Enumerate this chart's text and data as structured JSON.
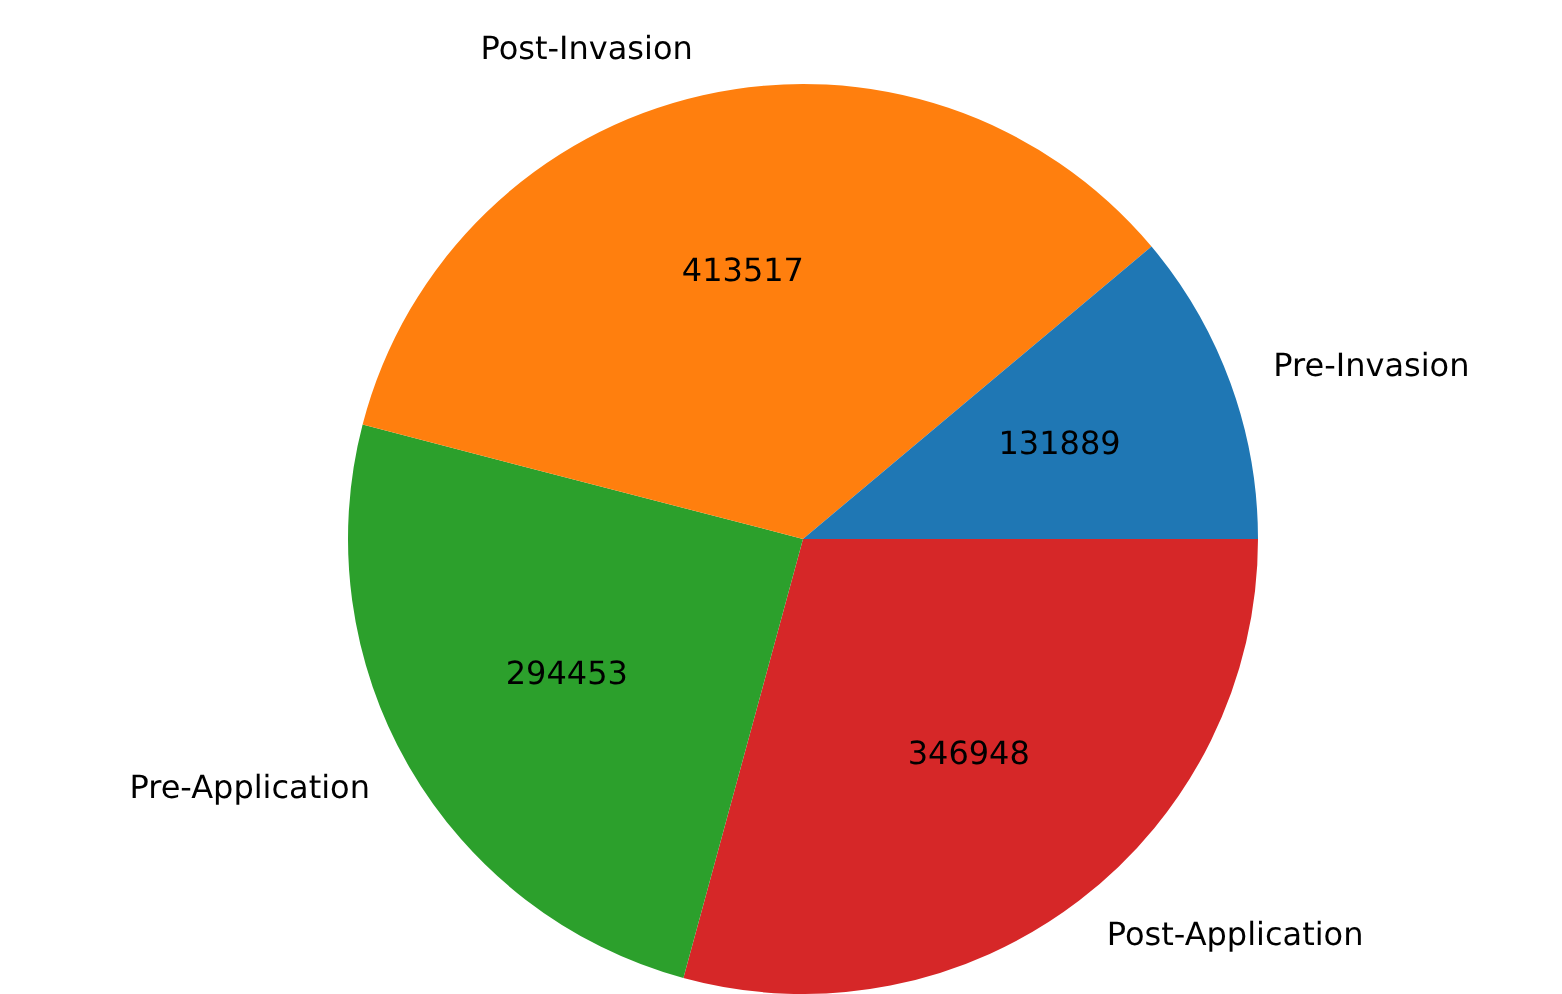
{
  "chart_data": {
    "type": "pie",
    "categories": [
      "Pre-Invasion",
      "Post-Invasion",
      "Pre-Application",
      "Post-Application"
    ],
    "values": [
      131889,
      413517,
      294453,
      346948
    ],
    "colors": [
      "#1f77b4",
      "#ff7f0e",
      "#2ca02c",
      "#d62728"
    ],
    "data_labels": true,
    "legend": false
  }
}
